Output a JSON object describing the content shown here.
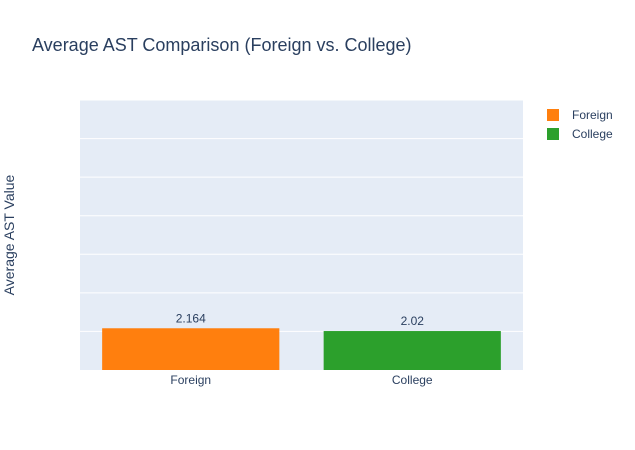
{
  "chart_data": {
    "type": "bar",
    "title": "Average AST Comparison (Foreign vs. College)",
    "xlabel": "",
    "ylabel": "Average AST Value",
    "categories": [
      "Foreign",
      "College"
    ],
    "values": [
      2.164,
      2.02
    ],
    "data_labels": [
      "2.164",
      "2.02"
    ],
    "ylim": [
      0,
      14
    ],
    "grid": true,
    "legend": {
      "placement": "top-right",
      "entries": [
        "Foreign",
        "College"
      ]
    },
    "colors": [
      "#ff7f0e",
      "#2ca02c"
    ],
    "plot_background": "#e5ecf6",
    "gridline_color": "#ffffff"
  }
}
